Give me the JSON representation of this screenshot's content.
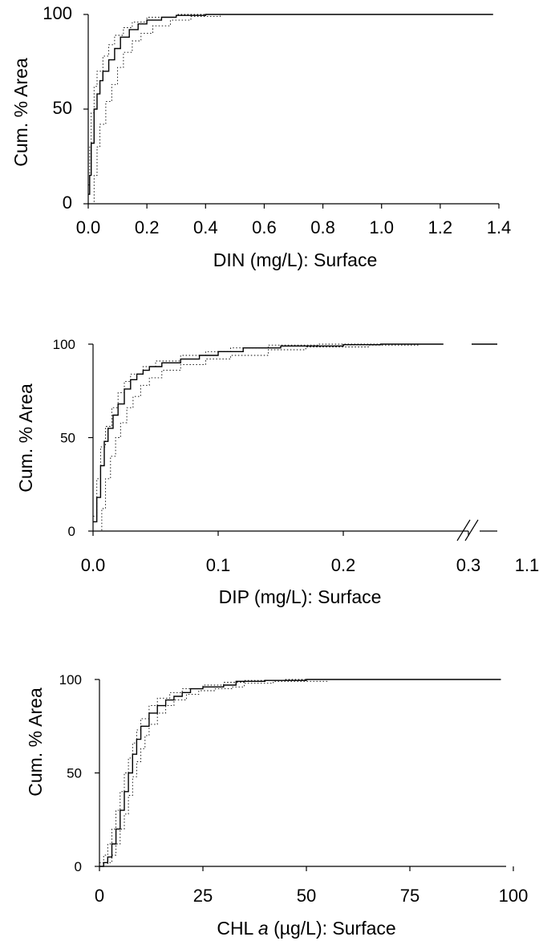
{
  "chart_data": [
    {
      "type": "line",
      "xlabel": "DIN (mg/L): Surface",
      "ylabel": "Cum. % Area",
      "xlim": [
        0,
        1.4
      ],
      "ylim": [
        0,
        100
      ],
      "xticks": [
        "0.0",
        "0.2",
        "0.4",
        "0.6",
        "0.8",
        "1.0",
        "1.2",
        "1.4"
      ],
      "yticks": [
        "0",
        "50",
        "100"
      ],
      "legend": "none",
      "grid": false,
      "series": [
        {
          "role": "estimate",
          "style": "solid",
          "points": [
            [
              0,
              5
            ],
            [
              0.005,
              15
            ],
            [
              0.01,
              32
            ],
            [
              0.02,
              50
            ],
            [
              0.03,
              58
            ],
            [
              0.04,
              65
            ],
            [
              0.05,
              70
            ],
            [
              0.07,
              76
            ],
            [
              0.09,
              82
            ],
            [
              0.11,
              88
            ],
            [
              0.14,
              92
            ],
            [
              0.17,
              95
            ],
            [
              0.2,
              97
            ],
            [
              0.25,
              98.5
            ],
            [
              0.3,
              99.5
            ],
            [
              0.4,
              100
            ],
            [
              1.38,
              100
            ]
          ]
        },
        {
          "role": "upper bound",
          "style": "dotted",
          "points": [
            [
              0,
              10
            ],
            [
              0.005,
              30
            ],
            [
              0.01,
              48
            ],
            [
              0.02,
              62
            ],
            [
              0.03,
              70
            ],
            [
              0.05,
              78
            ],
            [
              0.07,
              84
            ],
            [
              0.09,
              89
            ],
            [
              0.12,
              93
            ],
            [
              0.15,
              96
            ],
            [
              0.2,
              98.5
            ],
            [
              0.3,
              100
            ],
            [
              1.38,
              100
            ]
          ]
        },
        {
          "role": "lower bound",
          "style": "dotted",
          "points": [
            [
              0.015,
              0
            ],
            [
              0.02,
              15
            ],
            [
              0.03,
              30
            ],
            [
              0.04,
              42
            ],
            [
              0.06,
              54
            ],
            [
              0.08,
              63
            ],
            [
              0.1,
              72
            ],
            [
              0.12,
              80
            ],
            [
              0.15,
              86
            ],
            [
              0.18,
              90
            ],
            [
              0.22,
              94
            ],
            [
              0.28,
              97
            ],
            [
              0.35,
              99
            ],
            [
              0.45,
              100
            ],
            [
              1.38,
              100
            ]
          ]
        }
      ]
    },
    {
      "type": "line",
      "xlabel": "DIP (mg/L): Surface",
      "ylabel": "Cum. % Area",
      "xlim": [
        0,
        0.3
      ],
      "ylim": [
        0,
        100
      ],
      "xticks": [
        "0.0",
        "0.1",
        "0.2",
        "0.3",
        "1.1"
      ],
      "yticks": [
        "0",
        "50",
        "100"
      ],
      "axis_break": "between 0.3 and 1.1",
      "legend": "none",
      "grid": false,
      "series": [
        {
          "role": "estimate",
          "style": "solid",
          "points": [
            [
              0,
              5
            ],
            [
              0.003,
              18
            ],
            [
              0.006,
              35
            ],
            [
              0.009,
              48
            ],
            [
              0.012,
              55
            ],
            [
              0.016,
              62
            ],
            [
              0.02,
              68
            ],
            [
              0.025,
              76
            ],
            [
              0.03,
              81
            ],
            [
              0.035,
              84
            ],
            [
              0.04,
              86
            ],
            [
              0.045,
              88
            ],
            [
              0.055,
              90
            ],
            [
              0.07,
              92
            ],
            [
              0.085,
              94
            ],
            [
              0.1,
              96
            ],
            [
              0.12,
              98
            ],
            [
              0.15,
              99
            ],
            [
              0.2,
              99.7
            ],
            [
              0.23,
              100
            ],
            [
              0.28,
              100
            ]
          ]
        },
        {
          "role": "upper bound",
          "style": "dotted",
          "points": [
            [
              0,
              8
            ],
            [
              0.003,
              28
            ],
            [
              0.006,
              45
            ],
            [
              0.01,
              56
            ],
            [
              0.015,
              66
            ],
            [
              0.02,
              74
            ],
            [
              0.025,
              80
            ],
            [
              0.03,
              84
            ],
            [
              0.04,
              88
            ],
            [
              0.05,
              91
            ],
            [
              0.07,
              94
            ],
            [
              0.09,
              96
            ],
            [
              0.11,
              98
            ],
            [
              0.14,
              99.5
            ],
            [
              0.18,
              100
            ],
            [
              0.28,
              100
            ]
          ]
        },
        {
          "role": "lower bound",
          "style": "dotted",
          "points": [
            [
              0.005,
              0
            ],
            [
              0.007,
              12
            ],
            [
              0.01,
              28
            ],
            [
              0.014,
              40
            ],
            [
              0.018,
              50
            ],
            [
              0.022,
              58
            ],
            [
              0.027,
              66
            ],
            [
              0.032,
              72
            ],
            [
              0.038,
              78
            ],
            [
              0.045,
              82
            ],
            [
              0.055,
              86
            ],
            [
              0.07,
              89
            ],
            [
              0.09,
              92
            ],
            [
              0.11,
              94
            ],
            [
              0.14,
              97
            ],
            [
              0.17,
              98.5
            ],
            [
              0.22,
              99.5
            ],
            [
              0.26,
              100
            ],
            [
              0.28,
              100
            ]
          ]
        }
      ],
      "beyond_break": {
        "x_end": "1.1",
        "y": 100
      }
    },
    {
      "type": "line",
      "xlabel_prefix": "CHL ",
      "xlabel_italic": "a",
      "xlabel_suffix": " (µg/L): Surface",
      "ylabel": "Cum. % Area",
      "xlim": [
        0,
        100
      ],
      "ylim": [
        0,
        100
      ],
      "xticks": [
        "0",
        "25",
        "50",
        "75",
        "100"
      ],
      "yticks": [
        "0",
        "50",
        "100"
      ],
      "legend": "none",
      "grid": false,
      "series": [
        {
          "role": "estimate",
          "style": "solid",
          "points": [
            [
              0,
              0
            ],
            [
              1,
              2
            ],
            [
              2,
              5
            ],
            [
              3,
              12
            ],
            [
              4,
              20
            ],
            [
              5,
              30
            ],
            [
              6,
              40
            ],
            [
              7,
              50
            ],
            [
              8,
              60
            ],
            [
              9,
              68
            ],
            [
              10,
              75
            ],
            [
              12,
              82
            ],
            [
              14,
              86
            ],
            [
              16,
              89
            ],
            [
              18,
              91
            ],
            [
              20,
              93
            ],
            [
              22,
              95
            ],
            [
              25,
              96
            ],
            [
              30,
              97
            ],
            [
              33,
              99
            ],
            [
              40,
              99.5
            ],
            [
              50,
              100
            ],
            [
              97,
              100
            ]
          ]
        },
        {
          "role": "upper bound",
          "style": "dotted",
          "points": [
            [
              0,
              2
            ],
            [
              1,
              6
            ],
            [
              2,
              12
            ],
            [
              3,
              20
            ],
            [
              4,
              30
            ],
            [
              5,
              40
            ],
            [
              6,
              50
            ],
            [
              7,
              58
            ],
            [
              8,
              66
            ],
            [
              9,
              73
            ],
            [
              10,
              79
            ],
            [
              12,
              86
            ],
            [
              14,
              90
            ],
            [
              17,
              93
            ],
            [
              20,
              95
            ],
            [
              25,
              97
            ],
            [
              30,
              98.5
            ],
            [
              35,
              99.5
            ],
            [
              45,
              100
            ],
            [
              97,
              100
            ]
          ]
        },
        {
          "role": "lower bound",
          "style": "dotted",
          "points": [
            [
              1,
              0
            ],
            [
              2,
              2
            ],
            [
              3,
              6
            ],
            [
              4,
              12
            ],
            [
              5,
              20
            ],
            [
              6,
              28
            ],
            [
              7,
              38
            ],
            [
              8,
              48
            ],
            [
              9,
              56
            ],
            [
              10,
              63
            ],
            [
              11,
              70
            ],
            [
              12,
              76
            ],
            [
              14,
              82
            ],
            [
              16,
              86
            ],
            [
              18,
              89
            ],
            [
              21,
              92
            ],
            [
              24,
              94
            ],
            [
              28,
              95
            ],
            [
              32,
              96
            ],
            [
              35,
              98
            ],
            [
              42,
              99
            ],
            [
              55,
              100
            ],
            [
              97,
              100
            ]
          ]
        }
      ]
    }
  ]
}
